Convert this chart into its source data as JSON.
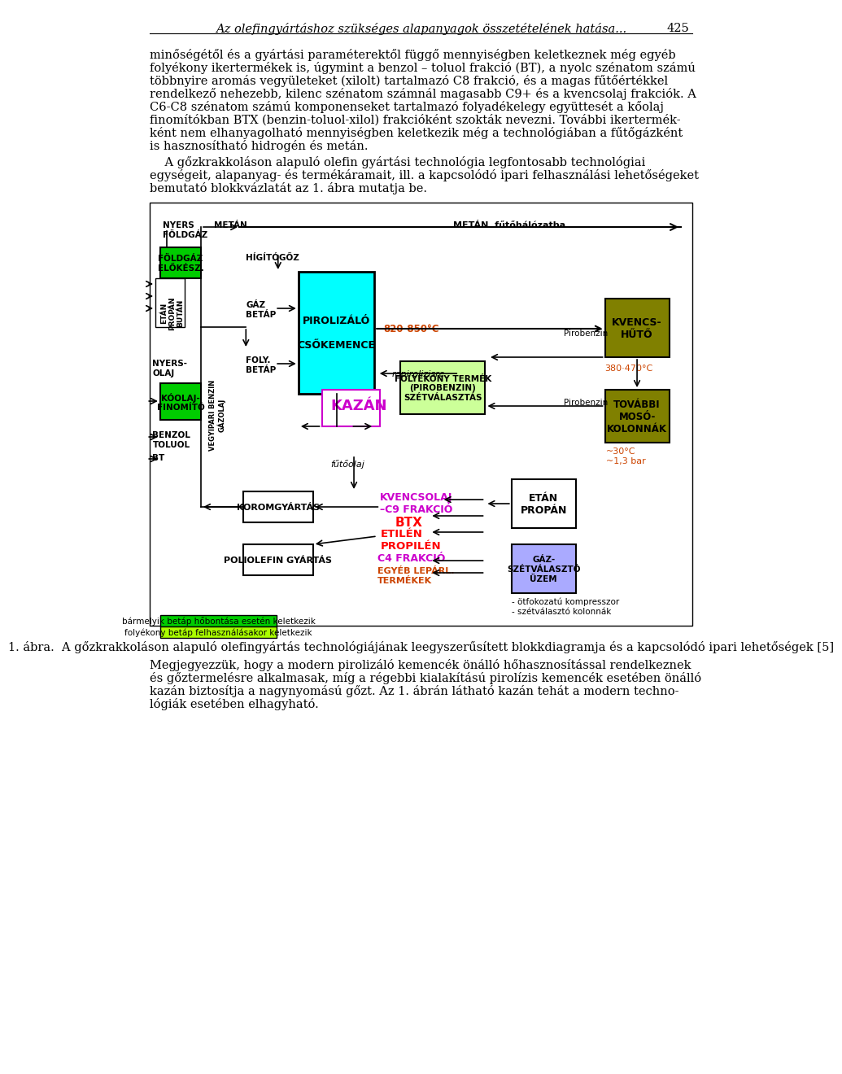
{
  "title_text": "Az olefingyártáshoz szükséges alapanyagok összetételének hatása...",
  "page_number": "425",
  "para1": "minőségétől és a gyártási paraméterektől függő mennyiségben keletkeznek még egyéb folyékony ikertermékek is, úgymint a benzol – toluol frakció (BT), a nyolc szénatom számú többnyire aromás vegyületeket (xilolt) tartalmazó C8 frakció, és a magas fűtőértékkel rendelkező nehezebb, kilenc szénatom számnál magasabb C9+ és a kvencsolaj frakciók. A C6-C8 szénatom számú komponenseket tartalmazó folyadékelegy együttesét a kőolaj finomítókban BTX (benzin-toluol-xilol) frakcióként szokták nevezni. További ikertermékként nem elhanyagolható mennyiségben keletkezik még a technológiában a fűtőgázként is hasznosítható hidrogén és metán.",
  "para2": "    A gőzkrakkoláson alapuló olefin gyártási technológia legfontosabb technológiai egységeit, alapanyag- és termékáramait, ill. a kapcsolódó ipari felhasználási lehetőségeket bemutató blokkvázlatát az 1. ábra mutatja be.",
  "caption": "1. ábra.  A gőzkrakkoláson alapuló olefingyártás technológiájának leegyszerűsített blokkdiagramja és a kapcsolódó ipari lehetőségek [5]",
  "para3": "Megjegyezzük, hogy a modern pirolizáló kemencék önálló hőhasznosítással rendelkeznek és gőztermelésre alkalmasak, míg a régebbi kialakítású pirolízis kemencék esetében önálló kazán biztosítja a nagynyomású gőzt. Az 1. ábrán látható kazán tehát a modern technológiák esetében elhagyható."
}
